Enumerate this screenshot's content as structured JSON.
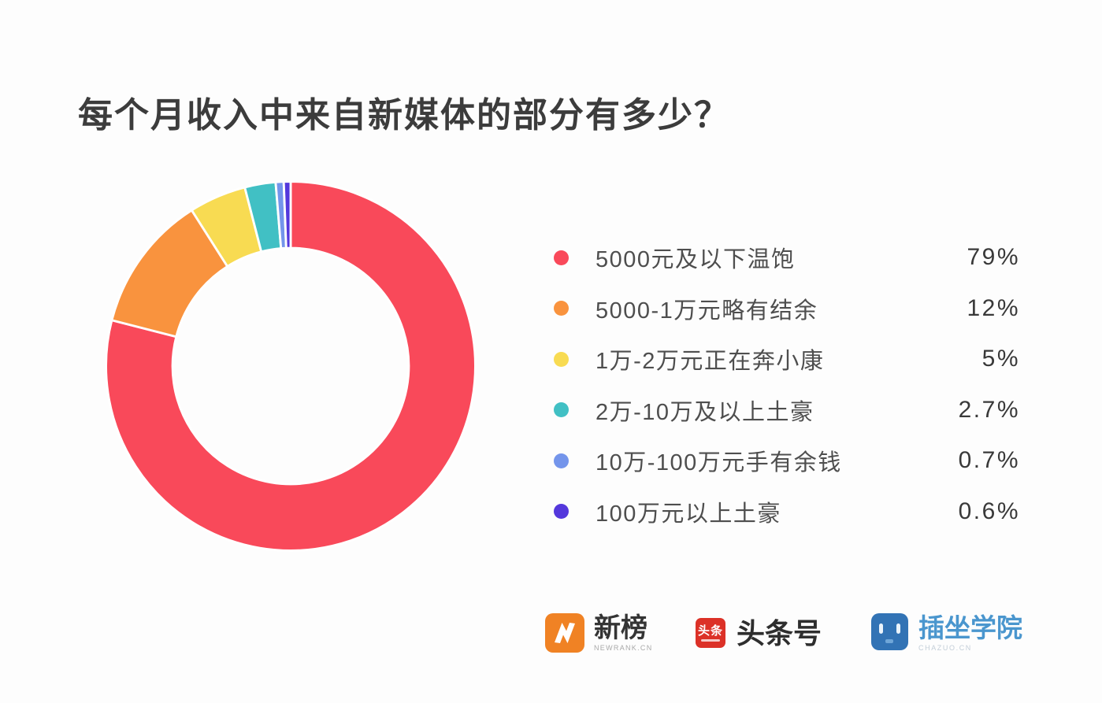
{
  "title": "每个月收入中来自新媒体的部分有多少？",
  "chart_data": {
    "type": "pie",
    "subtype": "donut",
    "title": "每个月收入中来自新媒体的部分有多少？",
    "start_angle_deg": -90,
    "direction": "clockwise",
    "legend_position": "right",
    "slices": [
      {
        "label": "5000元及以下温饱",
        "value": 79,
        "value_pct": "79%",
        "color": "#F9495A"
      },
      {
        "label": "5000-1万元略有结余",
        "value": 12,
        "value_pct": "12%",
        "color": "#F9933E"
      },
      {
        "label": "1万-2万元正在奔小康",
        "value": 5,
        "value_pct": "5%",
        "color": "#F8DB52"
      },
      {
        "label": "2万-10万及以上土豪",
        "value": 2.7,
        "value_pct": "2.7%",
        "color": "#41C0C4"
      },
      {
        "label": "10万-100万元手有余钱",
        "value": 0.7,
        "value_pct": "0.7%",
        "color": "#7495EB"
      },
      {
        "label": "100万元以上土豪",
        "value": 0.6,
        "value_pct": "0.6%",
        "color": "#5438DC"
      }
    ]
  },
  "footer": {
    "newrank": {
      "name": "新榜",
      "subtext": "NEWRANK.CN",
      "brand_color": "#F08224"
    },
    "toutiao": {
      "badge_text": "头条",
      "name": "头条号",
      "brand_color": "#DC3127"
    },
    "chazuo": {
      "name": "插坐学院",
      "subtext": "CHAZUO.CN",
      "brand_color": "#3273B5"
    }
  }
}
